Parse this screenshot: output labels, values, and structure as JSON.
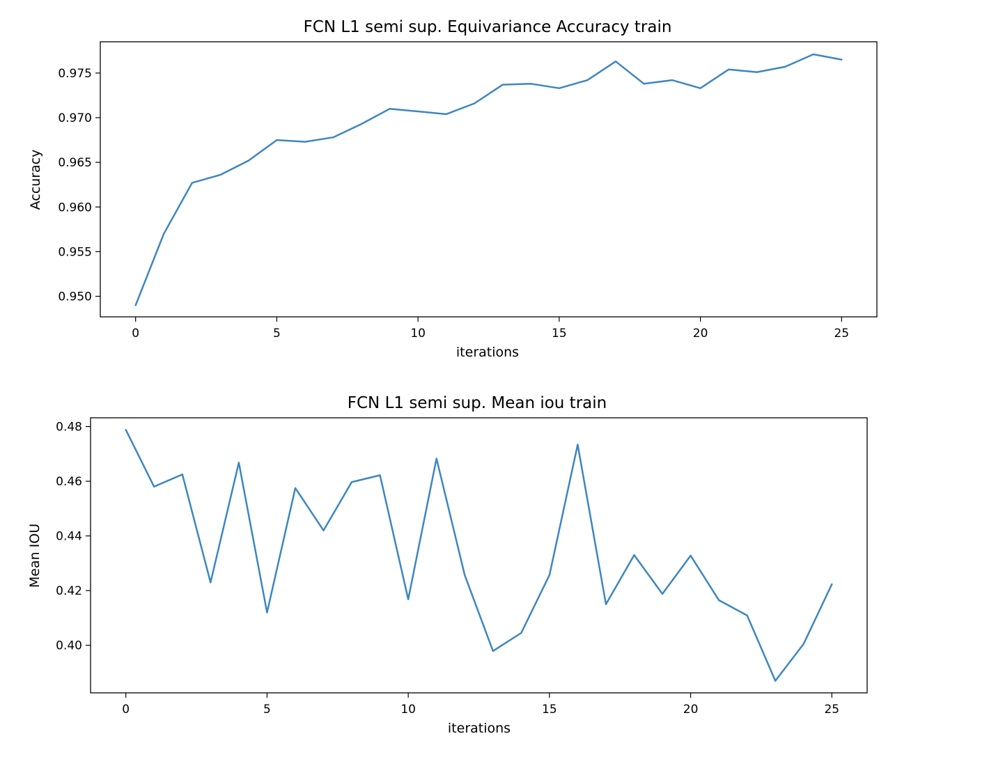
{
  "chart_data": [
    {
      "type": "line",
      "title": "FCN L1 semi sup. Equivariance Accuracy train",
      "xlabel": "iterations",
      "ylabel": "Accuracy",
      "xlim": [
        -1.25,
        26.25
      ],
      "ylim": [
        0.9477,
        0.9785
      ],
      "xticks": [
        0,
        5,
        10,
        15,
        20,
        25
      ],
      "yticks": [
        0.95,
        0.955,
        0.96,
        0.965,
        0.97,
        0.975
      ],
      "ytick_labels": [
        "0.950",
        "0.955",
        "0.960",
        "0.965",
        "0.970",
        "0.975"
      ],
      "grid": false,
      "line_color": "#3d86c0",
      "x": [
        0,
        1,
        2,
        3,
        4,
        5,
        6,
        7,
        8,
        9,
        10,
        11,
        12,
        13,
        14,
        15,
        16,
        17,
        18,
        19,
        20,
        21,
        22,
        23,
        24,
        25
      ],
      "values": [
        0.949,
        0.957,
        0.9627,
        0.9636,
        0.9652,
        0.9675,
        0.9673,
        0.9678,
        0.9693,
        0.971,
        0.9707,
        0.9704,
        0.9716,
        0.9737,
        0.9738,
        0.9733,
        0.9742,
        0.9763,
        0.9738,
        0.9742,
        0.9733,
        0.9754,
        0.9751,
        0.9757,
        0.9771,
        0.9765
      ]
    },
    {
      "type": "line",
      "title": "FCN L1 semi sup. Mean iou train",
      "xlabel": "iterations",
      "ylabel": "Mean IOU",
      "xlim": [
        -1.25,
        26.25
      ],
      "ylim": [
        0.3826,
        0.4832
      ],
      "xticks": [
        0,
        5,
        10,
        15,
        20,
        25
      ],
      "yticks": [
        0.4,
        0.42,
        0.44,
        0.46,
        0.48
      ],
      "ytick_labels": [
        "0.40",
        "0.42",
        "0.44",
        "0.46",
        "0.48"
      ],
      "grid": false,
      "line_color": "#3d86c0",
      "x": [
        0,
        1,
        2,
        3,
        4,
        5,
        6,
        7,
        8,
        9,
        10,
        11,
        12,
        13,
        14,
        15,
        16,
        17,
        18,
        19,
        20,
        21,
        22,
        23,
        24,
        25
      ],
      "values": [
        0.4788,
        0.458,
        0.4625,
        0.423,
        0.4668,
        0.412,
        0.4575,
        0.442,
        0.4597,
        0.4622,
        0.4168,
        0.4683,
        0.4257,
        0.3979,
        0.4045,
        0.4257,
        0.4734,
        0.415,
        0.433,
        0.4188,
        0.4328,
        0.4165,
        0.4109,
        0.387,
        0.4005,
        0.4223
      ]
    }
  ]
}
